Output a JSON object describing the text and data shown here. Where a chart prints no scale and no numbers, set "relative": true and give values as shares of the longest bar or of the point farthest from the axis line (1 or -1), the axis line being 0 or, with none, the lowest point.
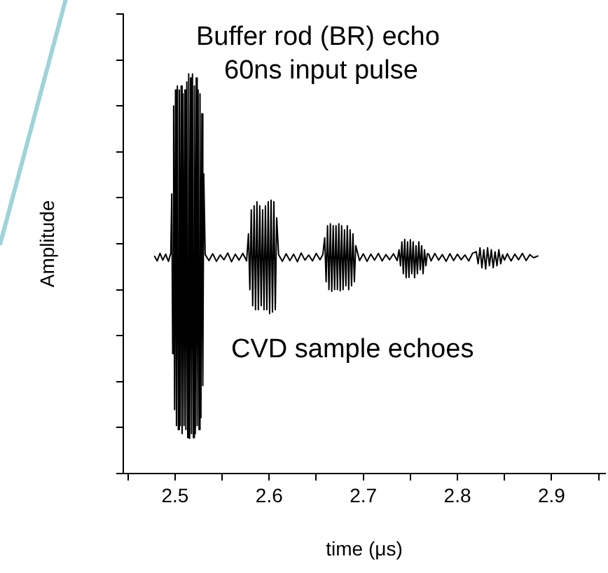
{
  "chart_data": {
    "type": "line",
    "relative": true,
    "xlabel": "time (μs)",
    "ylabel": "Amplitude",
    "tick_labels": "x",
    "grid": false,
    "legend": false,
    "marker": "none",
    "line_style": "solid",
    "annotations": [
      "Buffer rod (BR) echo",
      "60ns input pulse",
      "CVD sample echoes"
    ],
    "xlim": [
      2.445,
      2.957
    ],
    "xticks": [
      {
        "value": 2.45,
        "label": null
      },
      2.5,
      {
        "value": 2.55,
        "label": null
      },
      2.6,
      {
        "value": 2.65,
        "label": null
      },
      2.7,
      {
        "value": 2.75,
        "label": null
      },
      2.8,
      {
        "value": 2.85,
        "label": null
      },
      2.9,
      {
        "value": 2.95,
        "label": null
      }
    ],
    "series": [
      {
        "color": "#000000",
        "x": [
          2.478,
          2.481,
          2.484,
          2.487,
          2.49,
          2.493,
          2.4955,
          2.4965,
          2.4975,
          2.4985,
          2.4995,
          2.5005,
          2.5015,
          2.5025,
          2.5035,
          2.5045,
          2.5055,
          2.5065,
          2.5075,
          2.5085,
          2.5095,
          2.5105,
          2.5115,
          2.5125,
          2.5135,
          2.5145,
          2.5155,
          2.5165,
          2.5175,
          2.5185,
          2.5195,
          2.5205,
          2.5215,
          2.5225,
          2.5235,
          2.5245,
          2.5255,
          2.5265,
          2.5275,
          2.5285,
          2.5295,
          2.5305,
          2.532,
          2.536,
          2.54,
          2.544,
          2.548,
          2.552,
          2.556,
          2.56,
          2.564,
          2.568,
          2.572,
          2.576,
          2.578,
          2.5795,
          2.581,
          2.5825,
          2.584,
          2.5855,
          2.587,
          2.5885,
          2.59,
          2.5915,
          2.593,
          2.5945,
          2.596,
          2.5975,
          2.599,
          2.6005,
          2.602,
          2.6035,
          2.605,
          2.6065,
          2.608,
          2.61,
          2.614,
          2.618,
          2.622,
          2.626,
          2.63,
          2.634,
          2.638,
          2.642,
          2.646,
          2.65,
          2.654,
          2.657,
          2.659,
          2.6605,
          2.662,
          2.6635,
          2.665,
          2.6665,
          2.668,
          2.6695,
          2.671,
          2.6725,
          2.674,
          2.6755,
          2.677,
          2.6785,
          2.68,
          2.6815,
          2.683,
          2.6845,
          2.686,
          2.6875,
          2.689,
          2.6905,
          2.692,
          2.696,
          2.7,
          2.704,
          2.708,
          2.712,
          2.716,
          2.72,
          2.724,
          2.728,
          2.732,
          2.736,
          2.738,
          2.7395,
          2.741,
          2.7425,
          2.744,
          2.7455,
          2.747,
          2.7485,
          2.75,
          2.7515,
          2.753,
          2.7545,
          2.756,
          2.7575,
          2.759,
          2.7605,
          2.762,
          2.7635,
          2.765,
          2.7665,
          2.768,
          2.7695,
          2.772,
          2.776,
          2.78,
          2.784,
          2.788,
          2.792,
          2.796,
          2.8,
          2.804,
          2.808,
          2.812,
          2.816,
          2.82,
          2.822,
          2.824,
          2.826,
          2.828,
          2.83,
          2.832,
          2.834,
          2.836,
          2.838,
          2.84,
          2.842,
          2.844,
          2.846,
          2.848,
          2.85,
          2.853,
          2.857,
          2.861,
          2.865,
          2.869,
          2.873,
          2.877,
          2.881,
          2.886
        ],
        "values": [
          0.545,
          0.532,
          0.551,
          0.534,
          0.549,
          0.531,
          0.552,
          0.7,
          0.3,
          0.92,
          0.16,
          0.96,
          0.12,
          0.97,
          0.11,
          0.96,
          0.12,
          0.97,
          0.1,
          0.95,
          0.12,
          0.96,
          0.11,
          0.98,
          0.09,
          1.0,
          0.088,
          0.99,
          0.1,
          1.0,
          0.09,
          0.97,
          0.1,
          0.99,
          0.12,
          0.96,
          0.11,
          0.95,
          0.14,
          0.9,
          0.22,
          0.75,
          0.548,
          0.533,
          0.55,
          0.531,
          0.547,
          0.535,
          0.552,
          0.53,
          0.549,
          0.534,
          0.551,
          0.532,
          0.6,
          0.46,
          0.66,
          0.42,
          0.67,
          0.41,
          0.68,
          0.41,
          0.67,
          0.42,
          0.66,
          0.41,
          0.67,
          0.41,
          0.68,
          0.4,
          0.684,
          0.404,
          0.68,
          0.41,
          0.64,
          0.548,
          0.531,
          0.55,
          0.533,
          0.549,
          0.53,
          0.552,
          0.534,
          0.547,
          0.532,
          0.551,
          0.535,
          0.548,
          0.59,
          0.48,
          0.62,
          0.46,
          0.625,
          0.456,
          0.62,
          0.46,
          0.62,
          0.46,
          0.625,
          0.457,
          0.62,
          0.46,
          0.61,
          0.47,
          0.62,
          0.46,
          0.61,
          0.47,
          0.6,
          0.48,
          0.57,
          0.533,
          0.55,
          0.531,
          0.549,
          0.534,
          0.551,
          0.532,
          0.548,
          0.535,
          0.55,
          0.533,
          0.56,
          0.52,
          0.58,
          0.5,
          0.586,
          0.49,
          0.58,
          0.491,
          0.585,
          0.5,
          0.58,
          0.49,
          0.57,
          0.5,
          0.58,
          0.51,
          0.57,
          0.5,
          0.56,
          0.52,
          0.55,
          0.549,
          0.532,
          0.551,
          0.534,
          0.548,
          0.531,
          0.55,
          0.533,
          0.549,
          0.535,
          0.547,
          0.532,
          0.551,
          0.555,
          0.525,
          0.565,
          0.515,
          0.56,
          0.512,
          0.565,
          0.52,
          0.56,
          0.515,
          0.555,
          0.52,
          0.56,
          0.525,
          0.548,
          0.534,
          0.55,
          0.532,
          0.549,
          0.535,
          0.551,
          0.533,
          0.548,
          0.54,
          0.545
        ]
      }
    ]
  }
}
